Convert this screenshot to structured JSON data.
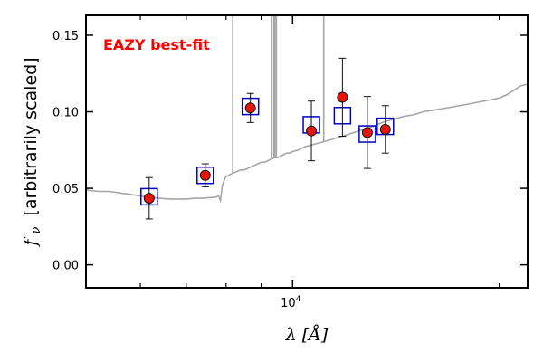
{
  "chart_data": {
    "type": "scatter",
    "title": "",
    "annotation": "EAZY best-fit",
    "annotation_color": "#ff0000",
    "xlabel": "λ [Å]",
    "ylabel_symbol": "f",
    "ylabel_subscript": "ν",
    "ylabel_text": "[arbitrarily scaled]",
    "x_scale": "log",
    "xlim": [
      5000,
      22000
    ],
    "ylim": [
      -0.015,
      0.163
    ],
    "y_ticks": [
      0.0,
      0.05,
      0.1,
      0.15
    ],
    "y_tick_labels": [
      "0.00",
      "0.05",
      "0.10",
      "0.15"
    ],
    "x_major_ticks": [
      10000
    ],
    "x_major_base": "10",
    "x_major_exp": "4",
    "x_minor_ticks": [
      6000,
      7000,
      8000,
      9000,
      20000
    ],
    "grid": false,
    "legend": "none",
    "colors": {
      "model": "#a6a6a6",
      "model_points": "#0000cc",
      "observed_fill": "#e8140c",
      "observed_edge": "#111111",
      "errorbar": "#111111"
    },
    "model_points": {
      "x": [
        6180,
        7460,
        8680,
        10650,
        11820,
        12850,
        13650
      ],
      "y": [
        0.0445,
        0.0585,
        0.1035,
        0.0915,
        0.0975,
        0.0855,
        0.0905
      ]
    },
    "observed": {
      "x": [
        6180,
        7460,
        8680,
        10650,
        11820,
        12850,
        13650
      ],
      "y": [
        0.0435,
        0.0585,
        0.1025,
        0.0875,
        0.1095,
        0.0865,
        0.0885
      ],
      "yerr": [
        0.0135,
        0.0075,
        0.0095,
        0.0195,
        0.0255,
        0.0235,
        0.0155
      ]
    },
    "model_spectrum": {
      "x": [
        5000,
        5200,
        5400,
        5600,
        5800,
        6000,
        6200,
        6400,
        6600,
        6800,
        7000,
        7200,
        7400,
        7600,
        7700,
        7760,
        7790,
        7800,
        7850,
        7900,
        7950,
        8000,
        8050,
        8100,
        8200,
        8300,
        8400,
        8500,
        8600,
        8700,
        8800,
        8900,
        9000,
        9100,
        9200,
        9300,
        9400,
        9500,
        9600,
        9700,
        9800,
        9900,
        10000,
        10200,
        10400,
        10600,
        10800,
        11000,
        11200,
        11400,
        11600,
        11800,
        12000,
        12200,
        12400,
        12600,
        12800,
        13000,
        13200,
        13500,
        14000,
        14500,
        15000,
        15500,
        16000,
        16500,
        17000,
        17500,
        18000,
        18500,
        19000,
        19500,
        20000,
        20500,
        21000,
        21500,
        22000
      ],
      "y": [
        0.049,
        0.048,
        0.048,
        0.047,
        0.046,
        0.045,
        0.044,
        0.0435,
        0.043,
        0.043,
        0.043,
        0.0435,
        0.0435,
        0.044,
        0.044,
        0.0445,
        0.045,
        0.045,
        0.042,
        0.052,
        0.055,
        0.058,
        0.058,
        0.059,
        0.06,
        0.061,
        0.062,
        0.062,
        0.063,
        0.064,
        0.065,
        0.066,
        0.067,
        0.067,
        0.068,
        0.069,
        0.07,
        0.07,
        0.071,
        0.072,
        0.073,
        0.073,
        0.074,
        0.075,
        0.077,
        0.078,
        0.079,
        0.08,
        0.081,
        0.082,
        0.083,
        0.084,
        0.085,
        0.086,
        0.087,
        0.088,
        0.089,
        0.09,
        0.091,
        0.093,
        0.095,
        0.097,
        0.098,
        0.1,
        0.101,
        0.102,
        0.103,
        0.104,
        0.105,
        0.106,
        0.107,
        0.108,
        0.109,
        0.111,
        0.114,
        0.117,
        0.118
      ]
    },
    "emission_lines": {
      "x": [
        8180,
        9320,
        9390,
        9420,
        9470,
        11100
      ],
      "peak": [
        0.163,
        0.163,
        0.163,
        0.163,
        0.163,
        0.163
      ]
    }
  }
}
